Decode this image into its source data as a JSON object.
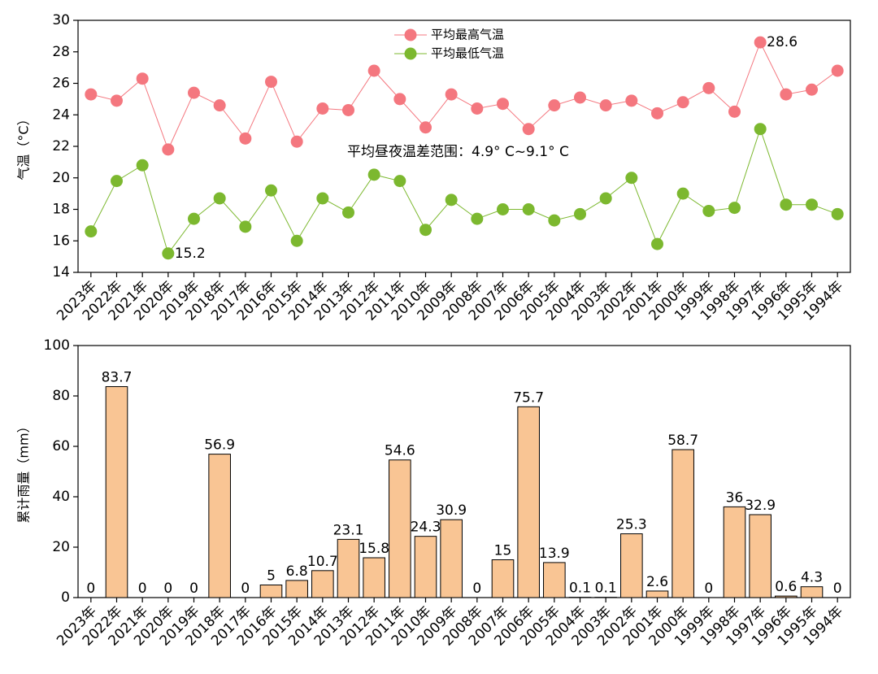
{
  "chart_data": [
    {
      "type": "line",
      "categories": [
        "2023年",
        "2022年",
        "2021年",
        "2020年",
        "2019年",
        "2018年",
        "2017年",
        "2016年",
        "2015年",
        "2014年",
        "2013年",
        "2012年",
        "2011年",
        "2010年",
        "2009年",
        "2008年",
        "2007年",
        "2006年",
        "2005年",
        "2004年",
        "2003年",
        "2002年",
        "2001年",
        "2000年",
        "1999年",
        "1998年",
        "1997年",
        "1996年",
        "1995年",
        "1994年"
      ],
      "series": [
        {
          "name": "平均最高气温",
          "color": "#f4777f",
          "values": [
            25.3,
            24.9,
            26.3,
            21.8,
            25.4,
            24.6,
            22.5,
            26.1,
            22.3,
            24.4,
            24.3,
            26.8,
            25.0,
            23.2,
            25.3,
            24.4,
            24.7,
            23.1,
            24.6,
            25.1,
            24.6,
            24.9,
            24.1,
            24.8,
            25.7,
            24.2,
            28.6,
            25.3,
            25.6,
            26.8
          ]
        },
        {
          "name": "平均最低气温",
          "color": "#7cb82f",
          "values": [
            16.6,
            19.8,
            20.8,
            15.2,
            17.4,
            18.7,
            16.9,
            19.2,
            16.0,
            18.7,
            17.8,
            20.2,
            19.8,
            16.7,
            18.6,
            17.4,
            18.0,
            18.0,
            17.3,
            17.7,
            18.7,
            20.0,
            15.8,
            19.0,
            17.9,
            18.1,
            23.1,
            18.3,
            18.3,
            17.7
          ]
        }
      ],
      "ylabel": "气温（°C）",
      "ylim": [
        14,
        30
      ],
      "yticks": [
        14,
        16,
        18,
        20,
        22,
        24,
        26,
        28,
        30
      ],
      "annotation": "平均昼夜温差范围：4.9° C~9.1° C",
      "legend": "upper center"
    },
    {
      "type": "bar",
      "categories": [
        "2023年",
        "2022年",
        "2021年",
        "2020年",
        "2019年",
        "2018年",
        "2017年",
        "2016年",
        "2015年",
        "2014年",
        "2013年",
        "2012年",
        "2011年",
        "2010年",
        "2009年",
        "2008年",
        "2007年",
        "2006年",
        "2005年",
        "2004年",
        "2003年",
        "2002年",
        "2001年",
        "2000年",
        "1999年",
        "1998年",
        "1997年",
        "1996年",
        "1995年",
        "1994年"
      ],
      "values": [
        0,
        83.7,
        0,
        0,
        0,
        56.9,
        0,
        5,
        6.8,
        10.7,
        23.1,
        15.8,
        54.6,
        24.3,
        30.9,
        0,
        15,
        75.7,
        13.9,
        0.1,
        0.1,
        25.3,
        2.6,
        58.7,
        0,
        36,
        32.9,
        0.6,
        4.3,
        0
      ],
      "color": "#f9c594",
      "ylabel": "累计雨量（mm）",
      "ylim": [
        0,
        100
      ],
      "yticks": [
        0,
        20,
        40,
        60,
        80,
        100
      ]
    }
  ]
}
